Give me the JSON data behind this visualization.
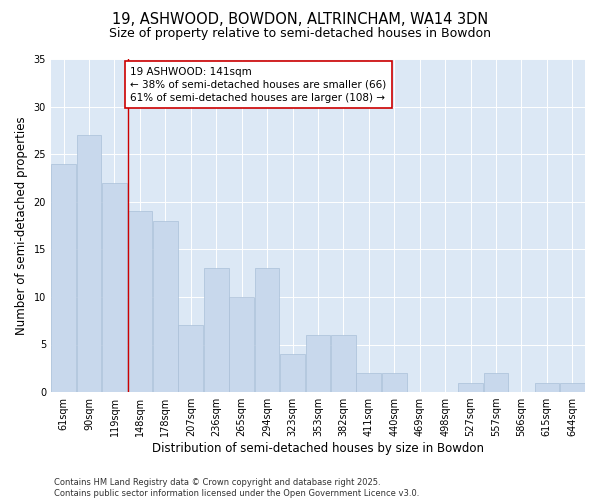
{
  "title": "19, ASHWOOD, BOWDON, ALTRINCHAM, WA14 3DN",
  "subtitle": "Size of property relative to semi-detached houses in Bowdon",
  "xlabel": "Distribution of semi-detached houses by size in Bowdon",
  "ylabel": "Number of semi-detached properties",
  "categories": [
    "61sqm",
    "90sqm",
    "119sqm",
    "148sqm",
    "178sqm",
    "207sqm",
    "236sqm",
    "265sqm",
    "294sqm",
    "323sqm",
    "353sqm",
    "382sqm",
    "411sqm",
    "440sqm",
    "469sqm",
    "498sqm",
    "527sqm",
    "557sqm",
    "586sqm",
    "615sqm",
    "644sqm"
  ],
  "values": [
    24,
    27,
    22,
    19,
    18,
    7,
    13,
    10,
    13,
    4,
    6,
    6,
    2,
    2,
    0,
    0,
    1,
    2,
    0,
    1,
    1
  ],
  "bar_color": "#c8d8ec",
  "bar_edge_color": "#aac0d8",
  "highlight_line_color": "#cc0000",
  "annotation_box_text": "19 ASHWOOD: 141sqm\n← 38% of semi-detached houses are smaller (66)\n61% of semi-detached houses are larger (108) →",
  "annotation_box_color": "#cc0000",
  "ylim": [
    0,
    35
  ],
  "yticks": [
    0,
    5,
    10,
    15,
    20,
    25,
    30,
    35
  ],
  "background_color": "#dce8f5",
  "plot_bg_color": "#dce8f5",
  "footer_text": "Contains HM Land Registry data © Crown copyright and database right 2025.\nContains public sector information licensed under the Open Government Licence v3.0.",
  "title_fontsize": 10.5,
  "subtitle_fontsize": 9,
  "axis_label_fontsize": 8.5,
  "tick_fontsize": 7,
  "footer_fontsize": 6,
  "ann_fontsize": 7.5
}
